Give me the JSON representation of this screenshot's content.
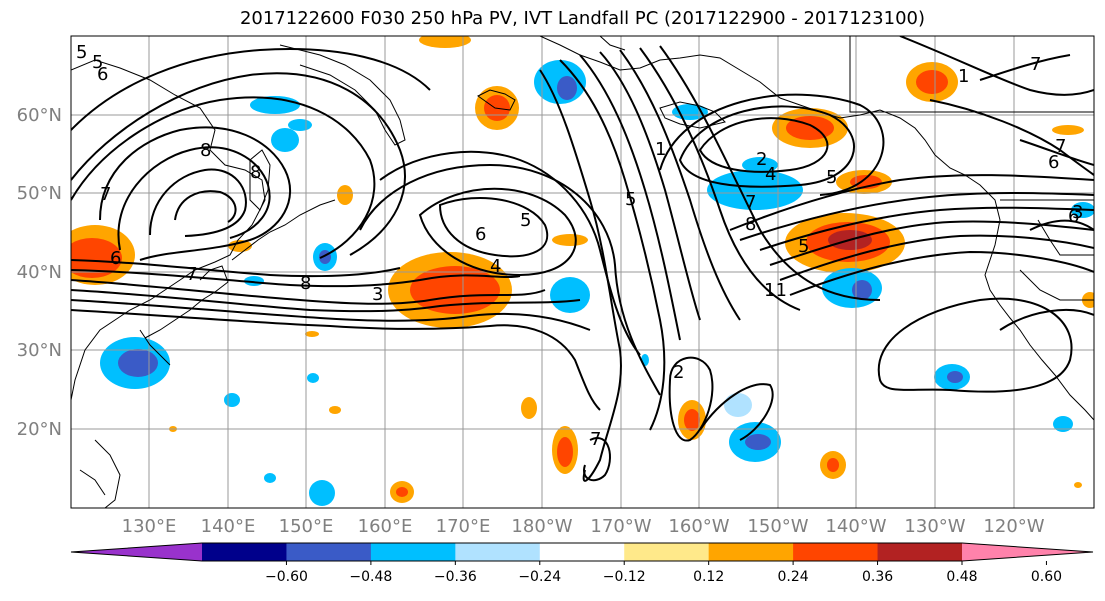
{
  "title": "2017122600 F030 250 hPa PV, IVT Landfall PC (2017122900 - 2017123100)",
  "lat_labels": [
    "60°N",
    "50°N",
    "40°N",
    "30°N",
    "20°N"
  ],
  "lon_labels": [
    "130°E",
    "140°E",
    "150°E",
    "160°E",
    "170°E",
    "180°W",
    "170°W",
    "160°W",
    "150°W",
    "140°W",
    "130°W",
    "120°W"
  ],
  "colorbar": {
    "colors": [
      "#9932cc",
      "#00008b",
      "#3a5bc7",
      "#00bfff",
      "#b0e2ff",
      "#ffffff",
      "#ffe98a",
      "#ffa500",
      "#ff4500",
      "#b22222",
      "#ff82ab"
    ],
    "ticks": [
      "−0.60",
      "−0.48",
      "−0.36",
      "−0.24",
      "−0.12",
      "0.12",
      "0.24",
      "0.36",
      "0.48",
      "0.60"
    ]
  },
  "contour_labels": [
    "5",
    "6",
    "8",
    "7",
    "8",
    "3",
    "4",
    "5",
    "6",
    "7",
    "5",
    "2",
    "1",
    "4",
    "5",
    "7",
    "8",
    "5",
    "11",
    "7",
    "6",
    "2",
    "1",
    "7",
    "8",
    "6",
    "3",
    "7",
    "6",
    "5"
  ]
}
